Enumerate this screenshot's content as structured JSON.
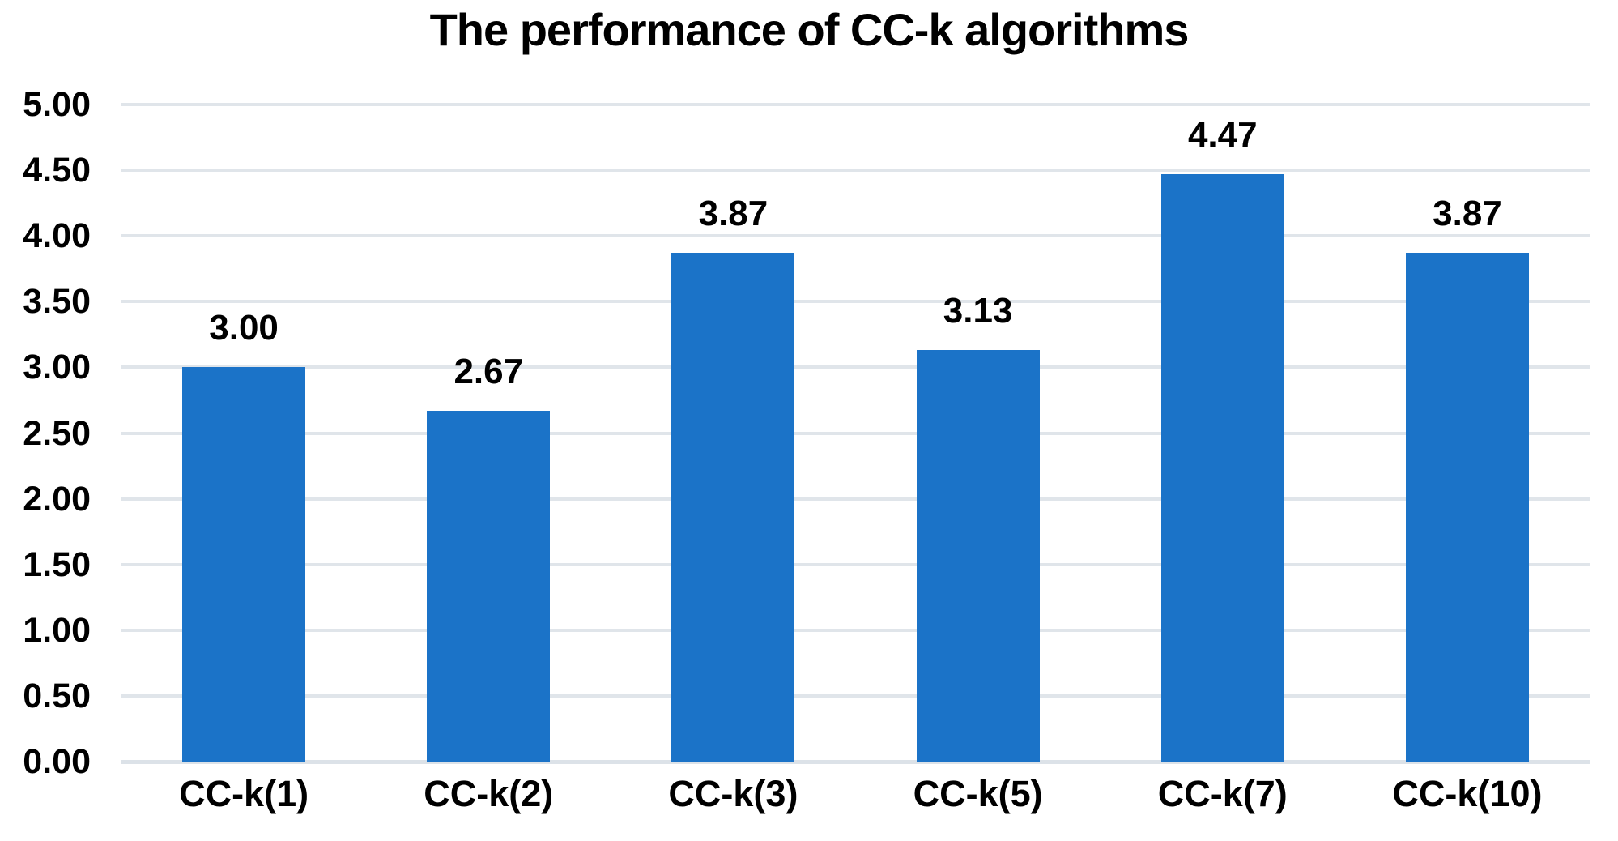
{
  "chart_data": {
    "type": "bar",
    "title": "The performance of CC-k algorithms",
    "categories": [
      "CC-k(1)",
      "CC-k(2)",
      "CC-k(3)",
      "CC-k(5)",
      "CC-k(7)",
      "CC-k(10)"
    ],
    "values": [
      3.0,
      2.67,
      3.87,
      3.13,
      4.47,
      3.87
    ],
    "data_labels": [
      "3.00",
      "2.67",
      "3.87",
      "3.13",
      "4.47",
      "3.87"
    ],
    "y_ticks": [
      "5.00",
      "4.50",
      "4.00",
      "3.50",
      "3.00",
      "2.50",
      "2.00",
      "1.50",
      "1.00",
      "0.50",
      "0.00"
    ],
    "ylim": [
      0,
      5
    ],
    "xlabel": "",
    "ylabel": "",
    "grid": true,
    "legend": "none",
    "bar_color": "#1b73c8",
    "gridline_color": "#e0e5ea",
    "baseline_color": "#dce2e8",
    "text_color": "#000000",
    "background_color": "#ffffff"
  }
}
